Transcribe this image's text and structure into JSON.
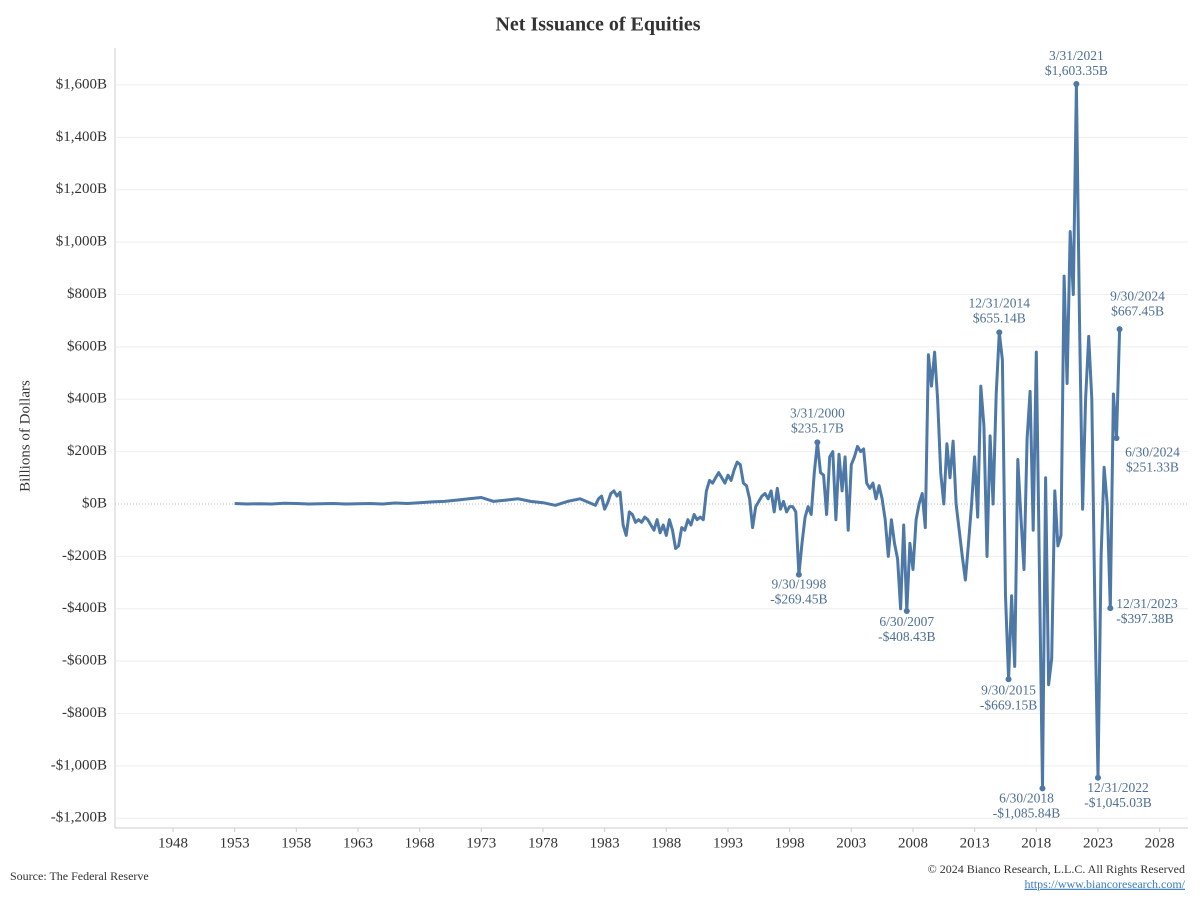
{
  "chart_data": {
    "type": "line",
    "title": "Net Issuance of Equities",
    "y_label": "Billions of Dollars",
    "color": "#4e79a7",
    "xlim": [
      1943.3,
      2030.3
    ],
    "xticks": [
      1948,
      1953,
      1958,
      1963,
      1968,
      1973,
      1978,
      1983,
      1988,
      1993,
      1998,
      2003,
      2008,
      2013,
      2018,
      2023,
      2028
    ],
    "ylim": [
      -1237,
      1741
    ],
    "yticks": [
      {
        "value": 1600,
        "label": "$1,600B"
      },
      {
        "value": 1400,
        "label": "$1,400B"
      },
      {
        "value": 1200,
        "label": "$1,200B"
      },
      {
        "value": 1000,
        "label": "$1,000B"
      },
      {
        "value": 800,
        "label": "$800B"
      },
      {
        "value": 600,
        "label": "$600B"
      },
      {
        "value": 400,
        "label": "$400B"
      },
      {
        "value": 200,
        "label": "$200B"
      },
      {
        "value": 0,
        "label": "$0B"
      },
      {
        "value": -200,
        "label": "-$200B"
      },
      {
        "value": -400,
        "label": "-$400B"
      },
      {
        "value": -600,
        "label": "-$600B"
      },
      {
        "value": -800,
        "label": "-$800B"
      },
      {
        "value": -1000,
        "label": "-$1,000B"
      },
      {
        "value": -1200,
        "label": "-$1,200B"
      }
    ],
    "grid": true,
    "x": [
      1953,
      1954,
      1955,
      1956,
      1957,
      1958,
      1959,
      1960,
      1961,
      1962,
      1963,
      1964,
      1965,
      1966,
      1967,
      1968,
      1969,
      1970,
      1971,
      1972,
      1973,
      1974,
      1975,
      1976,
      1977,
      1978,
      1979,
      1980,
      1981,
      1982.25,
      1982.5,
      1982.75,
      1983,
      1983.25,
      1983.5,
      1983.75,
      1984,
      1984.25,
      1984.5,
      1984.75,
      1985,
      1985.25,
      1985.5,
      1985.75,
      1986,
      1986.25,
      1986.5,
      1986.75,
      1987,
      1987.25,
      1987.5,
      1987.75,
      1988,
      1988.25,
      1988.5,
      1988.75,
      1989,
      1989.25,
      1989.5,
      1989.75,
      1990,
      1990.25,
      1990.5,
      1990.75,
      1991,
      1991.25,
      1991.5,
      1991.75,
      1992,
      1992.25,
      1992.5,
      1992.75,
      1993,
      1993.25,
      1993.5,
      1993.75,
      1994,
      1994.25,
      1994.5,
      1994.75,
      1995,
      1995.25,
      1995.5,
      1995.75,
      1996,
      1996.25,
      1996.5,
      1996.75,
      1997,
      1997.25,
      1997.5,
      1997.75,
      1998,
      1998.25,
      1998.5,
      1998.75,
      1999,
      1999.25,
      1999.5,
      1999.75,
      2000,
      2000.25,
      2000.5,
      2000.75,
      2001,
      2001.25,
      2001.5,
      2001.75,
      2002,
      2002.25,
      2002.5,
      2002.75,
      2003,
      2003.25,
      2003.5,
      2003.75,
      2004,
      2004.25,
      2004.5,
      2004.75,
      2005,
      2005.25,
      2005.5,
      2005.75,
      2006,
      2006.25,
      2006.5,
      2006.75,
      2007,
      2007.25,
      2007.5,
      2007.75,
      2008,
      2008.25,
      2008.5,
      2008.75,
      2009,
      2009.25,
      2009.5,
      2009.75,
      2010,
      2010.25,
      2010.5,
      2010.75,
      2011,
      2011.25,
      2011.5,
      2011.75,
      2012,
      2012.25,
      2012.5,
      2012.75,
      2013,
      2013.25,
      2013.5,
      2013.75,
      2014,
      2014.25,
      2014.5,
      2014.75,
      2015,
      2015.25,
      2015.5,
      2015.75,
      2016,
      2016.25,
      2016.5,
      2016.75,
      2017,
      2017.25,
      2017.5,
      2017.75,
      2018,
      2018.25,
      2018.5,
      2018.75,
      2019,
      2019.25,
      2019.5,
      2019.75,
      2020,
      2020.25,
      2020.5,
      2020.75,
      2021,
      2021.25,
      2021.5,
      2021.75,
      2022,
      2022.25,
      2022.5,
      2022.75,
      2023,
      2023.25,
      2023.5,
      2023.75,
      2024,
      2024.25,
      2024.5,
      2024.75
    ],
    "values": [
      2,
      0,
      1,
      0,
      3,
      2,
      0,
      1,
      2,
      0,
      1,
      2,
      0,
      4,
      2,
      5,
      8,
      10,
      15,
      20,
      25,
      10,
      15,
      20,
      10,
      5,
      -5,
      10,
      20,
      -5,
      20,
      30,
      -20,
      5,
      40,
      50,
      30,
      45,
      -80,
      -120,
      -30,
      -40,
      -70,
      -60,
      -70,
      -50,
      -60,
      -80,
      -100,
      -60,
      -110,
      -80,
      -120,
      -60,
      -100,
      -170,
      -160,
      -90,
      -100,
      -60,
      -80,
      -40,
      -60,
      -50,
      -60,
      50,
      90,
      80,
      100,
      120,
      100,
      80,
      110,
      90,
      130,
      160,
      150,
      80,
      70,
      20,
      -90,
      -10,
      10,
      30,
      40,
      20,
      50,
      -30,
      60,
      -20,
      10,
      -30,
      -10,
      -10,
      -30,
      -269.45,
      -150,
      -50,
      -10,
      -40,
      120,
      235.17,
      120,
      110,
      -40,
      180,
      200,
      -60,
      190,
      50,
      180,
      -100,
      150,
      180,
      220,
      200,
      210,
      80,
      60,
      80,
      20,
      70,
      20,
      -60,
      -200,
      -60,
      -150,
      -210,
      -400,
      -80,
      -408.43,
      -150,
      -250,
      -60,
      0,
      40,
      -90,
      570,
      450,
      580,
      400,
      120,
      0,
      230,
      100,
      240,
      0,
      -100,
      -200,
      -290,
      -150,
      0,
      180,
      -50,
      450,
      300,
      -200,
      260,
      0,
      420,
      655.14,
      550,
      -350,
      -669.15,
      -350,
      -620,
      170,
      -50,
      -250,
      250,
      430,
      -100,
      580,
      -250,
      -1085.84,
      100,
      -690,
      -590,
      50,
      -160,
      -120,
      870,
      460,
      1040,
      800,
      1603.35,
      700,
      -20,
      400,
      640,
      400,
      -400,
      -1045.03,
      -200,
      140,
      0,
      -397.38,
      420,
      251.33,
      667.45
    ],
    "annotations": [
      {
        "x": 1998.75,
        "y": -269.45,
        "label": "9/30/1998",
        "value_label": "-$269.45B"
      },
      {
        "x": 2000.25,
        "y": 235.17,
        "label": "3/31/2000",
        "value_label": "$235.17B"
      },
      {
        "x": 2007.5,
        "y": -408.43,
        "label": "6/30/2007",
        "value_label": "-$408.43B"
      },
      {
        "x": 2015,
        "y": 655.14,
        "label": "12/31/2014",
        "value_label": "$655.14B"
      },
      {
        "x": 2015.75,
        "y": -669.15,
        "label": "9/30/2015",
        "value_label": "-$669.15B"
      },
      {
        "x": 2018.5,
        "y": -1085.84,
        "label": "6/30/2018",
        "value_label": "-$1,085.84B"
      },
      {
        "x": 2021.25,
        "y": 1603.35,
        "label": "3/31/2021",
        "value_label": "$1,603.35B"
      },
      {
        "x": 2023,
        "y": -1045.03,
        "label": "12/31/2022",
        "value_label": "-$1,045.03B"
      },
      {
        "x": 2024,
        "y": -397.38,
        "label": "12/31/2023",
        "value_label": "-$397.38B"
      },
      {
        "x": 2024.5,
        "y": 251.33,
        "label": "6/30/2024",
        "value_label": "$251.33B"
      },
      {
        "x": 2024.75,
        "y": 667.45,
        "label": "9/30/2024",
        "value_label": "$667.45B"
      }
    ],
    "source": "Source: The Federal Reserve",
    "credit": "© 2024 Bianco Research, L.L.C. All Rights Reserved",
    "link": "https://www.biancoresearch.com/"
  }
}
